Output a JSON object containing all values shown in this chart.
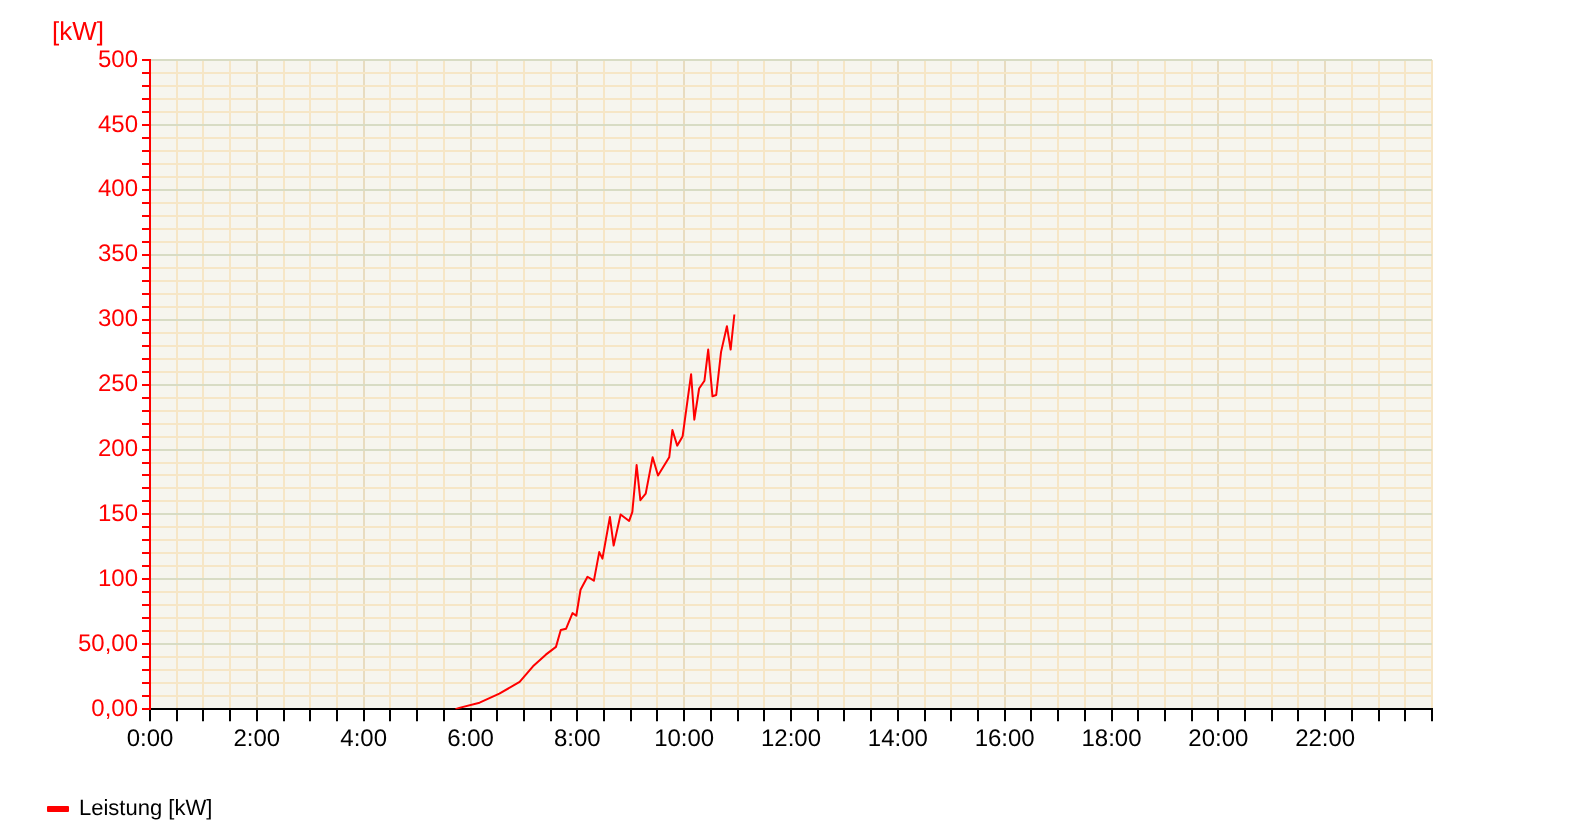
{
  "chart_data": {
    "type": "line",
    "ylabel": "[kW]",
    "x": [
      5.72,
      5.79,
      6.17,
      6.54,
      6.92,
      7.17,
      7.41,
      7.6,
      7.69,
      7.79,
      7.91,
      7.98,
      8.06,
      8.19,
      8.31,
      8.41,
      8.47,
      8.61,
      8.68,
      8.81,
      8.97,
      9.03,
      9.11,
      9.18,
      9.28,
      9.41,
      9.51,
      9.72,
      9.78,
      9.87,
      9.97,
      10.13,
      10.19,
      10.28,
      10.38,
      10.45,
      10.53,
      10.6,
      10.69,
      10.8,
      10.87,
      10.94
    ],
    "series": [
      {
        "name": "Leistung [kW]",
        "color": "#ff0000",
        "values": [
          0,
          1,
          5,
          12,
          21,
          33,
          42,
          48,
          61,
          62,
          74,
          72,
          92,
          102,
          99,
          121,
          116,
          148,
          126,
          150,
          145,
          152,
          188,
          161,
          166,
          194,
          180,
          194,
          215,
          203,
          210,
          258,
          223,
          247,
          253,
          277,
          241,
          242,
          275,
          295,
          277,
          304
        ]
      }
    ],
    "xlim": [
      0,
      24
    ],
    "xticks": [
      {
        "value": 0,
        "label": "0:00"
      },
      {
        "value": 0.5,
        "label": null
      },
      {
        "value": 1,
        "label": null
      },
      {
        "value": 1.5,
        "label": null
      },
      {
        "value": 2,
        "label": "2:00"
      },
      {
        "value": 2.5,
        "label": null
      },
      {
        "value": 3,
        "label": null
      },
      {
        "value": 3.5,
        "label": null
      },
      {
        "value": 4,
        "label": "4:00"
      },
      {
        "value": 4.5,
        "label": null
      },
      {
        "value": 5,
        "label": null
      },
      {
        "value": 5.5,
        "label": null
      },
      {
        "value": 6,
        "label": "6:00"
      },
      {
        "value": 6.5,
        "label": null
      },
      {
        "value": 7,
        "label": null
      },
      {
        "value": 7.5,
        "label": null
      },
      {
        "value": 8,
        "label": "8:00"
      },
      {
        "value": 8.5,
        "label": null
      },
      {
        "value": 9,
        "label": null
      },
      {
        "value": 9.5,
        "label": null
      },
      {
        "value": 10,
        "label": "10:00"
      },
      {
        "value": 10.5,
        "label": null
      },
      {
        "value": 11,
        "label": null
      },
      {
        "value": 11.5,
        "label": null
      },
      {
        "value": 12,
        "label": "12:00"
      },
      {
        "value": 12.5,
        "label": null
      },
      {
        "value": 13,
        "label": null
      },
      {
        "value": 13.5,
        "label": null
      },
      {
        "value": 14,
        "label": "14:00"
      },
      {
        "value": 14.5,
        "label": null
      },
      {
        "value": 15,
        "label": null
      },
      {
        "value": 15.5,
        "label": null
      },
      {
        "value": 16,
        "label": "16:00"
      },
      {
        "value": 16.5,
        "label": null
      },
      {
        "value": 17,
        "label": null
      },
      {
        "value": 17.5,
        "label": null
      },
      {
        "value": 18,
        "label": "18:00"
      },
      {
        "value": 18.5,
        "label": null
      },
      {
        "value": 19,
        "label": null
      },
      {
        "value": 19.5,
        "label": null
      },
      {
        "value": 20,
        "label": "20:00"
      },
      {
        "value": 20.5,
        "label": null
      },
      {
        "value": 21,
        "label": null
      },
      {
        "value": 21.5,
        "label": null
      },
      {
        "value": 22,
        "label": "22:00"
      },
      {
        "value": 22.5,
        "label": null
      },
      {
        "value": 23,
        "label": null
      },
      {
        "value": 23.5,
        "label": null
      },
      {
        "value": 24,
        "label": null
      }
    ],
    "ylim": [
      0,
      500
    ],
    "yticks": [
      {
        "value": 0,
        "label": "0,00"
      },
      {
        "value": 10,
        "label": null
      },
      {
        "value": 20,
        "label": null
      },
      {
        "value": 30,
        "label": null
      },
      {
        "value": 40,
        "label": null
      },
      {
        "value": 50,
        "label": "50,00"
      },
      {
        "value": 60,
        "label": null
      },
      {
        "value": 70,
        "label": null
      },
      {
        "value": 80,
        "label": null
      },
      {
        "value": 90,
        "label": null
      },
      100,
      {
        "value": 110,
        "label": null
      },
      {
        "value": 120,
        "label": null
      },
      {
        "value": 130,
        "label": null
      },
      {
        "value": 140,
        "label": null
      },
      150,
      {
        "value": 160,
        "label": null
      },
      {
        "value": 170,
        "label": null
      },
      {
        "value": 180,
        "label": null
      },
      {
        "value": 190,
        "label": null
      },
      200,
      {
        "value": 210,
        "label": null
      },
      {
        "value": 220,
        "label": null
      },
      {
        "value": 230,
        "label": null
      },
      {
        "value": 240,
        "label": null
      },
      250,
      {
        "value": 260,
        "label": null
      },
      {
        "value": 270,
        "label": null
      },
      {
        "value": 280,
        "label": null
      },
      {
        "value": 290,
        "label": null
      },
      300,
      {
        "value": 310,
        "label": null
      },
      {
        "value": 320,
        "label": null
      },
      {
        "value": 330,
        "label": null
      },
      {
        "value": 340,
        "label": null
      },
      350,
      {
        "value": 360,
        "label": null
      },
      {
        "value": 370,
        "label": null
      },
      {
        "value": 380,
        "label": null
      },
      {
        "value": 390,
        "label": null
      },
      400,
      {
        "value": 410,
        "label": null
      },
      {
        "value": 420,
        "label": null
      },
      {
        "value": 430,
        "label": null
      },
      {
        "value": 440,
        "label": null
      },
      450,
      {
        "value": 460,
        "label": null
      },
      {
        "value": 470,
        "label": null
      },
      {
        "value": 480,
        "label": null
      },
      {
        "value": 490,
        "label": null
      },
      500
    ],
    "grid": true,
    "legend": "bottom left",
    "marker": "none",
    "line_style": "solid"
  }
}
